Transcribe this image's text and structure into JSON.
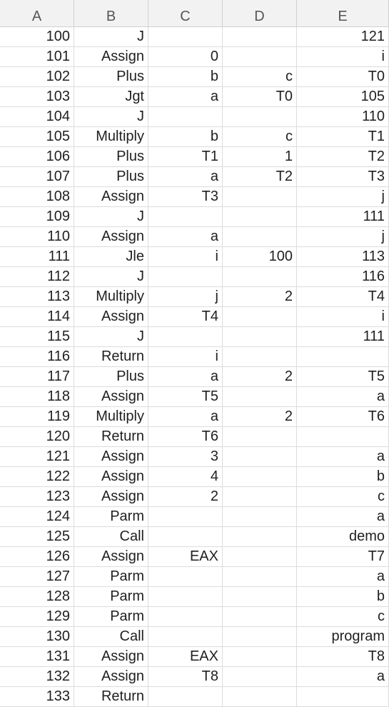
{
  "columns": [
    "A",
    "B",
    "C",
    "D",
    "E"
  ],
  "rows": [
    [
      "100",
      "J",
      "",
      "",
      "121"
    ],
    [
      "101",
      "Assign",
      "0",
      "",
      "i"
    ],
    [
      "102",
      "Plus",
      "b",
      "c",
      "T0"
    ],
    [
      "103",
      "Jgt",
      "a",
      "T0",
      "105"
    ],
    [
      "104",
      "J",
      "",
      "",
      "110"
    ],
    [
      "105",
      "Multiply",
      "b",
      "c",
      "T1"
    ],
    [
      "106",
      "Plus",
      "T1",
      "1",
      "T2"
    ],
    [
      "107",
      "Plus",
      "a",
      "T2",
      "T3"
    ],
    [
      "108",
      "Assign",
      "T3",
      "",
      "j"
    ],
    [
      "109",
      "J",
      "",
      "",
      "111"
    ],
    [
      "110",
      "Assign",
      "a",
      "",
      "j"
    ],
    [
      "111",
      "Jle",
      "i",
      "100",
      "113"
    ],
    [
      "112",
      "J",
      "",
      "",
      "116"
    ],
    [
      "113",
      "Multiply",
      "j",
      "2",
      "T4"
    ],
    [
      "114",
      "Assign",
      "T4",
      "",
      "i"
    ],
    [
      "115",
      "J",
      "",
      "",
      "111"
    ],
    [
      "116",
      "Return",
      "i",
      "",
      ""
    ],
    [
      "117",
      "Plus",
      "a",
      "2",
      "T5"
    ],
    [
      "118",
      "Assign",
      "T5",
      "",
      "a"
    ],
    [
      "119",
      "Multiply",
      "a",
      "2",
      "T6"
    ],
    [
      "120",
      "Return",
      "T6",
      "",
      ""
    ],
    [
      "121",
      "Assign",
      "3",
      "",
      "a"
    ],
    [
      "122",
      "Assign",
      "4",
      "",
      "b"
    ],
    [
      "123",
      "Assign",
      "2",
      "",
      "c"
    ],
    [
      "124",
      "Parm",
      "",
      "",
      "a"
    ],
    [
      "125",
      "Call",
      "",
      "",
      "demo"
    ],
    [
      "126",
      "Assign",
      "EAX",
      "",
      "T7"
    ],
    [
      "127",
      "Parm",
      "",
      "",
      "a"
    ],
    [
      "128",
      "Parm",
      "",
      "",
      "b"
    ],
    [
      "129",
      "Parm",
      "",
      "",
      "c"
    ],
    [
      "130",
      "Call",
      "",
      "",
      "program"
    ],
    [
      "131",
      "Assign",
      "EAX",
      "",
      "T8"
    ],
    [
      "132",
      "Assign",
      "T8",
      "",
      "a"
    ],
    [
      "133",
      "Return",
      "",
      "",
      ""
    ]
  ]
}
